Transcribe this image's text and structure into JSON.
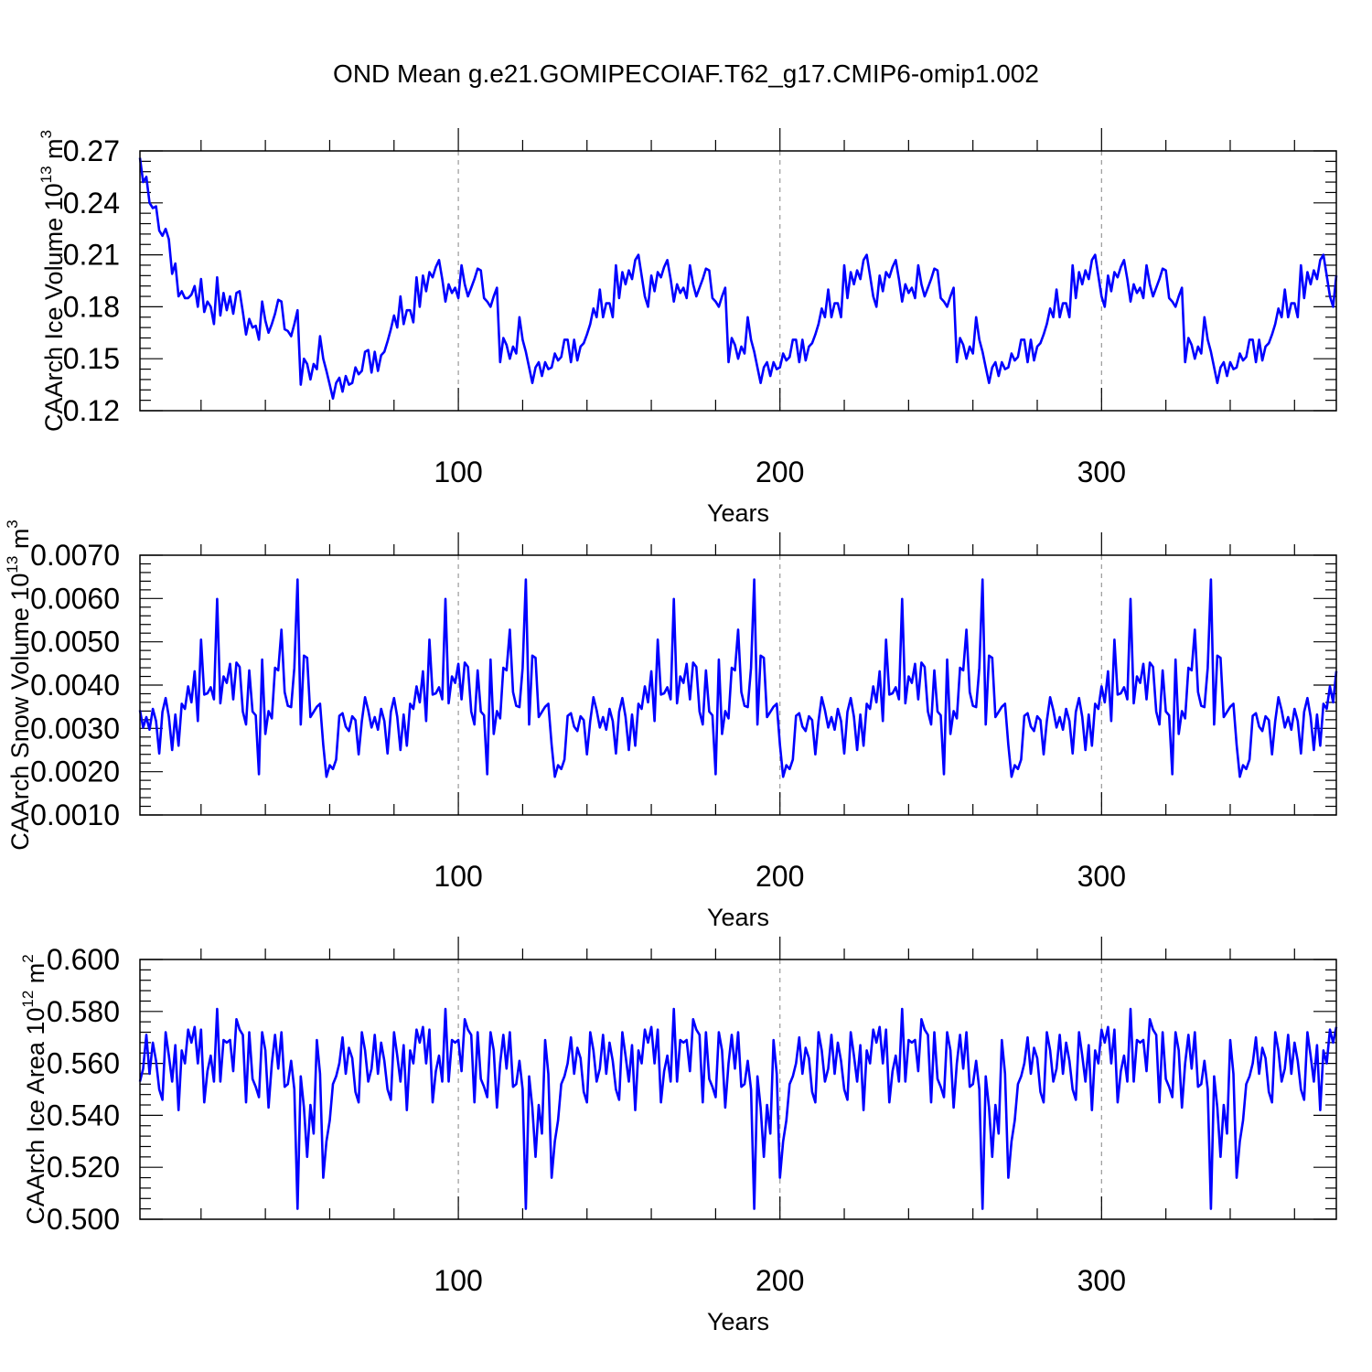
{
  "title": "OND Mean g.e21.GOMIPECOIAF.T62_g17.CMIP6-omip1.002",
  "line_color": "#0000ff",
  "chart_data": [
    {
      "type": "line",
      "ylabel_main": "CAArch Ice Volume 10",
      "ylabel_exp": "13",
      "ylabel_unit": " m",
      "ylabel_unit_exp": "3",
      "xlabel": "Years",
      "xlim": [
        1,
        373
      ],
      "ylim": [
        0.12,
        0.27
      ],
      "xticks": [
        100,
        200,
        300
      ],
      "xtick_labels": [
        "100",
        "200",
        "300"
      ],
      "yticks": [
        0.12,
        0.15,
        0.18,
        0.21,
        0.24,
        0.27
      ],
      "ytick_labels": [
        "0.12",
        "0.15",
        "0.18",
        "0.21",
        "0.24",
        "0.27"
      ],
      "pattern": {
        "start_year": 1,
        "lead": [
          0.266,
          0.252,
          0.255,
          0.24,
          0.237,
          0.238,
          0.224,
          0.221,
          0.225,
          0.219,
          0.199,
          0.205,
          0.186,
          0.189,
          0.185,
          0.185,
          0.187,
          0.192,
          0.18,
          0.196,
          0.177,
          0.183,
          0.18,
          0.17,
          0.197,
          0.175,
          0.188,
          0.178,
          0.186,
          0.176,
          0.188,
          0.189,
          0.177,
          0.164,
          0.173,
          0.168,
          0.169,
          0.161,
          0.183,
          0.172,
          0.165,
          0.17,
          0.176,
          0.184,
          0.183,
          0.167,
          0.166,
          0.163,
          0.17,
          0.178,
          0.135,
          0.15,
          0.147,
          0.138,
          0.147,
          0.144,
          0.163,
          0.15,
          0.143,
          0.135,
          0.127,
          0.136,
          0.139,
          0.131,
          0.14,
          0.135,
          0.136,
          0.145,
          0.141,
          0.143,
          0.154,
          0.155,
          0.142,
          0.154,
          0.143,
          0.152,
          0.154,
          0.16,
          0.167,
          0.175,
          0.168,
          0.186,
          0.17,
          0.178,
          0.178,
          0.171,
          0.197
        ],
        "cycle": [
          0.18,
          0.198,
          0.189,
          0.2,
          0.197,
          0.203,
          0.207,
          0.196,
          0.183,
          0.193,
          0.188,
          0.191,
          0.185,
          0.204,
          0.193,
          0.186,
          0.191,
          0.196,
          0.202,
          0.201,
          0.185,
          0.183,
          0.18,
          0.186,
          0.191,
          0.148,
          0.162,
          0.158,
          0.15,
          0.157,
          0.153,
          0.174,
          0.161,
          0.154,
          0.145,
          0.136,
          0.145,
          0.148,
          0.14,
          0.148,
          0.144,
          0.145,
          0.153,
          0.149,
          0.151,
          0.161,
          0.161,
          0.148,
          0.161,
          0.149,
          0.157,
          0.159,
          0.164,
          0.17,
          0.179,
          0.174,
          0.19,
          0.174,
          0.182,
          0.182,
          0.174,
          0.204,
          0.185,
          0.2,
          0.193,
          0.201,
          0.196,
          0.207,
          0.21,
          0.198,
          0.186
        ]
      }
    },
    {
      "type": "line",
      "ylabel_main": "CAArch Snow Volume 10",
      "ylabel_exp": "13",
      "ylabel_unit": " m",
      "ylabel_unit_exp": "3",
      "xlabel": "Years",
      "xlim": [
        1,
        373
      ],
      "ylim": [
        0.001,
        0.007
      ],
      "xticks": [
        100,
        200,
        300
      ],
      "xtick_labels": [
        "100",
        "200",
        "300"
      ],
      "yticks": [
        0.001,
        0.002,
        0.003,
        0.004,
        0.005,
        0.006,
        0.007
      ],
      "ytick_labels": [
        "0.0010",
        "0.0020",
        "0.0030",
        "0.0040",
        "0.0050",
        "0.0060",
        "0.0070"
      ],
      "pattern": {
        "start_year": 1,
        "lead": [],
        "cycle": [
          0.00342,
          0.00302,
          0.00326,
          0.00297,
          0.00345,
          0.00317,
          0.00242,
          0.00338,
          0.0037,
          0.00327,
          0.0025,
          0.00332,
          0.0026,
          0.00357,
          0.00345,
          0.00397,
          0.0036,
          0.00432,
          0.00317,
          0.00505,
          0.00378,
          0.00381,
          0.00395,
          0.00367,
          0.00599,
          0.00358,
          0.0042,
          0.00405,
          0.00449,
          0.00367,
          0.00452,
          0.00442,
          0.00339,
          0.00309,
          0.00434,
          0.00339,
          0.0033,
          0.00194,
          0.00459,
          0.00287,
          0.0034,
          0.00323,
          0.0044,
          0.00434,
          0.00528,
          0.00384,
          0.00352,
          0.00349,
          0.0044,
          0.00644,
          0.00309,
          0.00468,
          0.00463,
          0.00326,
          0.00338,
          0.0035,
          0.00357,
          0.00262,
          0.00188,
          0.00215,
          0.00206,
          0.00228,
          0.00329,
          0.00335,
          0.00304,
          0.00294,
          0.00328,
          0.00319,
          0.0024,
          0.00317,
          0.00372
        ]
      }
    },
    {
      "type": "line",
      "ylabel_main": "CAArch Ice Area 10",
      "ylabel_exp": "12",
      "ylabel_unit": " m",
      "ylabel_unit_exp": "2",
      "xlabel": "Years",
      "xlim": [
        1,
        373
      ],
      "ylim": [
        0.5,
        0.6
      ],
      "xticks": [
        100,
        200,
        300
      ],
      "xtick_labels": [
        "100",
        "200",
        "300"
      ],
      "yticks": [
        0.5,
        0.52,
        0.54,
        0.56,
        0.58,
        0.6
      ],
      "ytick_labels": [
        "0.500",
        "0.520",
        "0.540",
        "0.560",
        "0.580",
        "0.600"
      ],
      "pattern": {
        "start_year": 1,
        "lead": [],
        "cycle": [
          0.553,
          0.558,
          0.571,
          0.556,
          0.568,
          0.561,
          0.55,
          0.546,
          0.572,
          0.563,
          0.553,
          0.567,
          0.542,
          0.565,
          0.56,
          0.573,
          0.568,
          0.574,
          0.56,
          0.573,
          0.545,
          0.557,
          0.563,
          0.553,
          0.581,
          0.553,
          0.569,
          0.568,
          0.569,
          0.557,
          0.577,
          0.573,
          0.571,
          0.545,
          0.572,
          0.554,
          0.551,
          0.547,
          0.572,
          0.565,
          0.543,
          0.56,
          0.571,
          0.558,
          0.572,
          0.551,
          0.552,
          0.561,
          0.55,
          0.504,
          0.555,
          0.543,
          0.524,
          0.544,
          0.533,
          0.569,
          0.556,
          0.516,
          0.53,
          0.538,
          0.552,
          0.555,
          0.56,
          0.57,
          0.556,
          0.566,
          0.562,
          0.549,
          0.545,
          0.572,
          0.565
        ]
      }
    }
  ]
}
